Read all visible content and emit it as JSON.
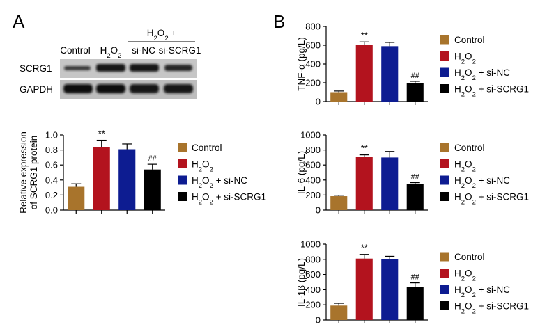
{
  "panel_a": {
    "letter": "A",
    "blot": {
      "group_header": "H2O2 +",
      "lanes": [
        "Control",
        "H2O2",
        "si-NC",
        "si-SCRG1"
      ],
      "row_labels": [
        "SCRG1",
        "GAPDH"
      ]
    }
  },
  "panel_b": {
    "letter": "B"
  },
  "legend": {
    "entries": [
      {
        "label": "Control",
        "color": "#a8742c"
      },
      {
        "label": "H2O2",
        "color": "#b3131e"
      },
      {
        "label": "H2O2 + si-NC",
        "color": "#0d1c91"
      },
      {
        "label": "H2O2 + si-SCRG1",
        "color": "#000000"
      }
    ]
  },
  "chart_data": [
    {
      "type": "bar",
      "ylabel": [
        "Relative expression",
        "of SCRG1 protein"
      ],
      "categories": [
        "Control",
        "H2O2",
        "H2O2 + si-NC",
        "H2O2 + si-SCRG1"
      ],
      "values": [
        0.31,
        0.84,
        0.81,
        0.54
      ],
      "errors": [
        0.04,
        0.09,
        0.07,
        0.07
      ],
      "significance": [
        "",
        "**",
        "",
        "##"
      ],
      "ylim": [
        0,
        1.0
      ],
      "ticks": [
        0.0,
        0.2,
        0.4,
        0.6,
        0.8,
        1.0
      ],
      "tick_labels": [
        "0.0",
        "0.2",
        "0.4",
        "0.6",
        "0.8",
        "1.0"
      ]
    },
    {
      "type": "bar",
      "ylabel": "TNF-α (pg/L)",
      "categories": [
        "Control",
        "H2O2",
        "H2O2 + si-NC",
        "H2O2 + si-SCRG1"
      ],
      "values": [
        100,
        605,
        590,
        200
      ],
      "errors": [
        12,
        30,
        40,
        15
      ],
      "significance": [
        "",
        "**",
        "",
        "##"
      ],
      "ylim": [
        0,
        800
      ],
      "ticks": [
        0,
        200,
        400,
        600,
        800
      ],
      "tick_labels": [
        "0",
        "200",
        "400",
        "600",
        "800"
      ]
    },
    {
      "type": "bar",
      "ylabel": "IL-6 (pg/L)",
      "categories": [
        "Control",
        "H2O2",
        "H2O2 + si-NC",
        "H2O2 + si-SCRG1"
      ],
      "values": [
        185,
        710,
        700,
        345
      ],
      "errors": [
        12,
        25,
        80,
        20
      ],
      "significance": [
        "",
        "**",
        "",
        "##"
      ],
      "ylim": [
        0,
        1000
      ],
      "ticks": [
        0,
        200,
        400,
        600,
        800,
        1000
      ],
      "tick_labels": [
        "0",
        "200",
        "400",
        "600",
        "800",
        "1000"
      ]
    },
    {
      "type": "bar",
      "ylabel": "IL-1β (pg/L)",
      "categories": [
        "Control",
        "H2O2",
        "H2O2 + si-NC",
        "H2O2 + si-SCRG1"
      ],
      "values": [
        190,
        810,
        800,
        440
      ],
      "errors": [
        30,
        55,
        40,
        50
      ],
      "significance": [
        "",
        "**",
        "",
        "##"
      ],
      "ylim": [
        0,
        1000
      ],
      "ticks": [
        0,
        200,
        400,
        600,
        800,
        1000
      ],
      "tick_labels": [
        "0",
        "200",
        "400",
        "600",
        "800",
        "1000"
      ]
    }
  ]
}
